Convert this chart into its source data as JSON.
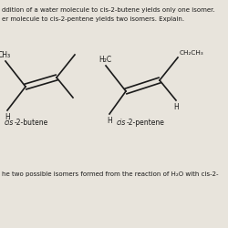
{
  "bg_color": "#e8e4dc",
  "text_color": "#1a1a1a",
  "top_text1": "ddition of a water molecule to cis-2-butene yields only one isomer.",
  "top_text2": "er molecule to cis-2-pentene yields two isomers. Explain.",
  "bottom_text": "he two possible isomers formed from the reaction of H₂O with cis-2-",
  "mol1_label_italic": "cis",
  "mol1_label_rest": "-2-butene",
  "mol2_label_italic": "cis",
  "mol2_label_rest": "-2-pentene"
}
